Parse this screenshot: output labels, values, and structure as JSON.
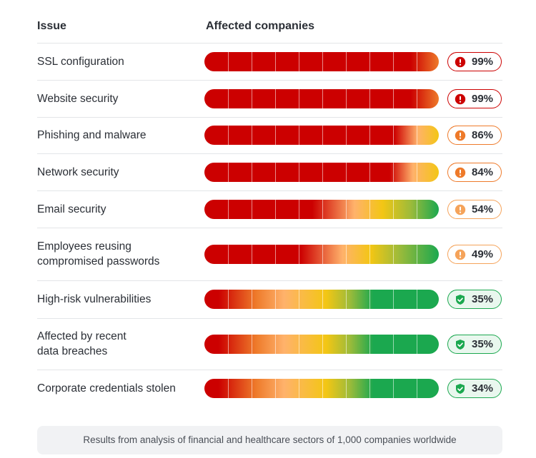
{
  "header": {
    "issue": "Issue",
    "affected": "Affected companies"
  },
  "chart_data": {
    "type": "bar",
    "categories": [
      "SSL configuration",
      "Website security",
      "Phishing and malware",
      "Network security",
      "Email security",
      "Employees reusing\ncompromised passwords",
      "High-risk vulnerabilities",
      "Affected by recent\ndata breaches",
      "Corporate credentials stolen"
    ],
    "values": [
      99,
      99,
      86,
      84,
      54,
      49,
      35,
      35,
      34
    ],
    "value_labels": [
      "99%",
      "99%",
      "86%",
      "84%",
      "54%",
      "49%",
      "35%",
      "35%",
      "34%"
    ],
    "levels": [
      "critical",
      "critical",
      "high",
      "high",
      "medium",
      "medium",
      "low",
      "low",
      "low"
    ],
    "xlabel": "Affected companies",
    "ylabel": "Issue",
    "xlim": [
      0,
      100
    ]
  },
  "icons": {
    "critical": "exclamation-circle-icon",
    "high": "exclamation-circle-icon",
    "medium": "exclamation-circle-icon",
    "low": "shield-check-icon"
  },
  "colors": {
    "red": "#cc0000",
    "orange": "#ee7a2a",
    "peach": "#ffb26b",
    "yellow": "#f3c614",
    "olive": "#9dbb3a",
    "green": "#1ba84f",
    "critical_border": "#cc0000",
    "high_border": "#ee7a2a",
    "medium_border": "#f5a35a",
    "low_border": "#1ba84f",
    "low_bg": "#e9f7ee"
  },
  "footer": "Results from analysis of financial and healthcare sectors of 1,000 companies worldwide"
}
